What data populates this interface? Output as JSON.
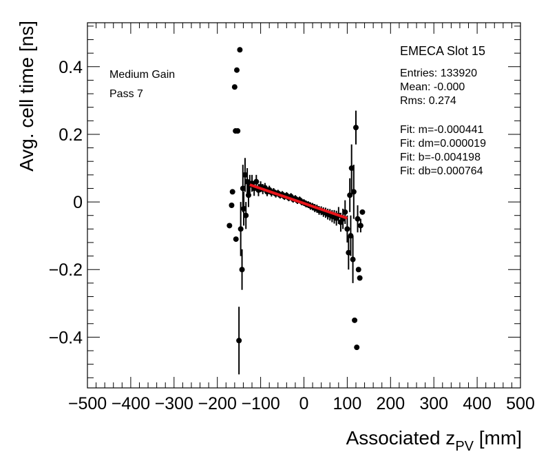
{
  "chart_data": {
    "type": "scatter",
    "title": "EMECA Slot 15",
    "xlabel": "Associated z",
    "xlabel_sub": "PV",
    "xlabel_unit": "[mm]",
    "ylabel": "Avg. cell time [ns]",
    "xlim": [
      -500,
      500
    ],
    "ylim": [
      -0.55,
      0.53
    ],
    "xticks": [
      -500,
      -400,
      -300,
      -200,
      -100,
      0,
      100,
      200,
      300,
      400,
      500
    ],
    "xtick_labels": [
      "−500",
      "−400",
      "−300",
      "−200",
      "−100",
      "0",
      "100",
      "200",
      "300",
      "400",
      "500"
    ],
    "yticks": [
      -0.4,
      -0.2,
      0,
      0.2,
      0.4
    ],
    "ytick_labels": [
      "−0.4",
      "−0.2",
      "0",
      "0.2",
      "0.4"
    ],
    "annotations_left": [
      "Medium Gain",
      "Pass 7"
    ],
    "stats": {
      "entries": "Entries: 133920",
      "mean": "Mean: -0.000",
      "rms": "Rms: 0.274"
    },
    "fit_text": {
      "m": "Fit: m=-0.000441",
      "dm": "Fit: dm=0.000019",
      "b": "Fit: b=-0.004198",
      "db": "Fit: db=0.000764"
    },
    "fit": {
      "m": -0.000441,
      "b": -0.004198,
      "x_range": [
        -125,
        100
      ],
      "color": "#e8141a"
    },
    "marker_color": "#000000",
    "points": [
      {
        "x": -172,
        "y": -0.07,
        "e": 0.0
      },
      {
        "x": -167,
        "y": -0.01,
        "e": 0.0
      },
      {
        "x": -165,
        "y": 0.03,
        "e": 0.0
      },
      {
        "x": -160,
        "y": 0.34,
        "e": 0.0
      },
      {
        "x": -158,
        "y": 0.21,
        "e": 0.0
      },
      {
        "x": -157,
        "y": -0.11,
        "e": 0.0
      },
      {
        "x": -155,
        "y": 0.39,
        "e": 0.0
      },
      {
        "x": -153,
        "y": 0.21,
        "e": 0.0
      },
      {
        "x": -150,
        "y": -0.41,
        "e": 0.1
      },
      {
        "x": -148,
        "y": 0.45,
        "e": 0.0
      },
      {
        "x": -146,
        "y": -0.08,
        "e": 0.08
      },
      {
        "x": -143,
        "y": -0.2,
        "e": 0.06
      },
      {
        "x": -141,
        "y": 0.04,
        "e": 0.07
      },
      {
        "x": -139,
        "y": -0.02,
        "e": 0.05
      },
      {
        "x": -136,
        "y": 0.08,
        "e": 0.05
      },
      {
        "x": -134,
        "y": -0.04,
        "e": 0.04
      },
      {
        "x": -131,
        "y": 0.06,
        "e": 0.04
      },
      {
        "x": -128,
        "y": 0.02,
        "e": 0.035
      },
      {
        "x": -125,
        "y": 0.05,
        "e": 0.03
      },
      {
        "x": -120,
        "y": 0.055,
        "e": 0.025
      },
      {
        "x": -115,
        "y": 0.04,
        "e": 0.022
      },
      {
        "x": -110,
        "y": 0.06,
        "e": 0.02
      },
      {
        "x": -105,
        "y": 0.035,
        "e": 0.018
      },
      {
        "x": -100,
        "y": 0.045,
        "e": 0.016
      },
      {
        "x": -95,
        "y": 0.038,
        "e": 0.015
      },
      {
        "x": -90,
        "y": 0.042,
        "e": 0.014
      },
      {
        "x": -85,
        "y": 0.03,
        "e": 0.013
      },
      {
        "x": -80,
        "y": 0.036,
        "e": 0.012
      },
      {
        "x": -75,
        "y": 0.028,
        "e": 0.012
      },
      {
        "x": -70,
        "y": 0.03,
        "e": 0.011
      },
      {
        "x": -65,
        "y": 0.024,
        "e": 0.011
      },
      {
        "x": -60,
        "y": 0.026,
        "e": 0.01
      },
      {
        "x": -55,
        "y": 0.02,
        "e": 0.01
      },
      {
        "x": -50,
        "y": 0.022,
        "e": 0.01
      },
      {
        "x": -45,
        "y": 0.016,
        "e": 0.01
      },
      {
        "x": -40,
        "y": 0.019,
        "e": 0.01
      },
      {
        "x": -35,
        "y": 0.012,
        "e": 0.01
      },
      {
        "x": -30,
        "y": 0.016,
        "e": 0.01
      },
      {
        "x": -25,
        "y": 0.008,
        "e": 0.01
      },
      {
        "x": -20,
        "y": 0.01,
        "e": 0.01
      },
      {
        "x": -15,
        "y": 0.004,
        "e": 0.01
      },
      {
        "x": -10,
        "y": 0.006,
        "e": 0.01
      },
      {
        "x": -5,
        "y": 0.0,
        "e": 0.01
      },
      {
        "x": 0,
        "y": -0.002,
        "e": 0.01
      },
      {
        "x": 5,
        "y": -0.006,
        "e": 0.01
      },
      {
        "x": 10,
        "y": -0.008,
        "e": 0.01
      },
      {
        "x": 15,
        "y": -0.012,
        "e": 0.011
      },
      {
        "x": 20,
        "y": -0.014,
        "e": 0.011
      },
      {
        "x": 25,
        "y": -0.018,
        "e": 0.012
      },
      {
        "x": 30,
        "y": -0.02,
        "e": 0.012
      },
      {
        "x": 35,
        "y": -0.025,
        "e": 0.013
      },
      {
        "x": 40,
        "y": -0.026,
        "e": 0.013
      },
      {
        "x": 45,
        "y": -0.03,
        "e": 0.014
      },
      {
        "x": 50,
        "y": -0.032,
        "e": 0.015
      },
      {
        "x": 55,
        "y": -0.036,
        "e": 0.016
      },
      {
        "x": 60,
        "y": -0.038,
        "e": 0.017
      },
      {
        "x": 65,
        "y": -0.042,
        "e": 0.018
      },
      {
        "x": 70,
        "y": -0.044,
        "e": 0.02
      },
      {
        "x": 75,
        "y": -0.048,
        "e": 0.022
      },
      {
        "x": 80,
        "y": -0.04,
        "e": 0.025
      },
      {
        "x": 85,
        "y": -0.06,
        "e": 0.028
      },
      {
        "x": 90,
        "y": -0.05,
        "e": 0.03
      },
      {
        "x": 95,
        "y": -0.03,
        "e": 0.035
      },
      {
        "x": 100,
        "y": -0.08,
        "e": 0.04
      },
      {
        "x": 103,
        "y": -0.15,
        "e": 0.05
      },
      {
        "x": 106,
        "y": 0.02,
        "e": 0.05
      },
      {
        "x": 108,
        "y": -0.1,
        "e": 0.06
      },
      {
        "x": 110,
        "y": 0.1,
        "e": 0.07
      },
      {
        "x": 113,
        "y": -0.17,
        "e": 0.07
      },
      {
        "x": 115,
        "y": 0.03,
        "e": 0.08
      },
      {
        "x": 117,
        "y": -0.35,
        "e": 0.0
      },
      {
        "x": 120,
        "y": 0.22,
        "e": 0.05
      },
      {
        "x": 122,
        "y": -0.43,
        "e": 0.0
      },
      {
        "x": 124,
        "y": -0.05,
        "e": 0.04
      },
      {
        "x": 126,
        "y": -0.2,
        "e": 0.0
      },
      {
        "x": 129,
        "y": -0.225,
        "e": 0.0
      },
      {
        "x": 131,
        "y": -0.07,
        "e": 0.02
      },
      {
        "x": 135,
        "y": -0.03,
        "e": 0.0
      }
    ]
  }
}
